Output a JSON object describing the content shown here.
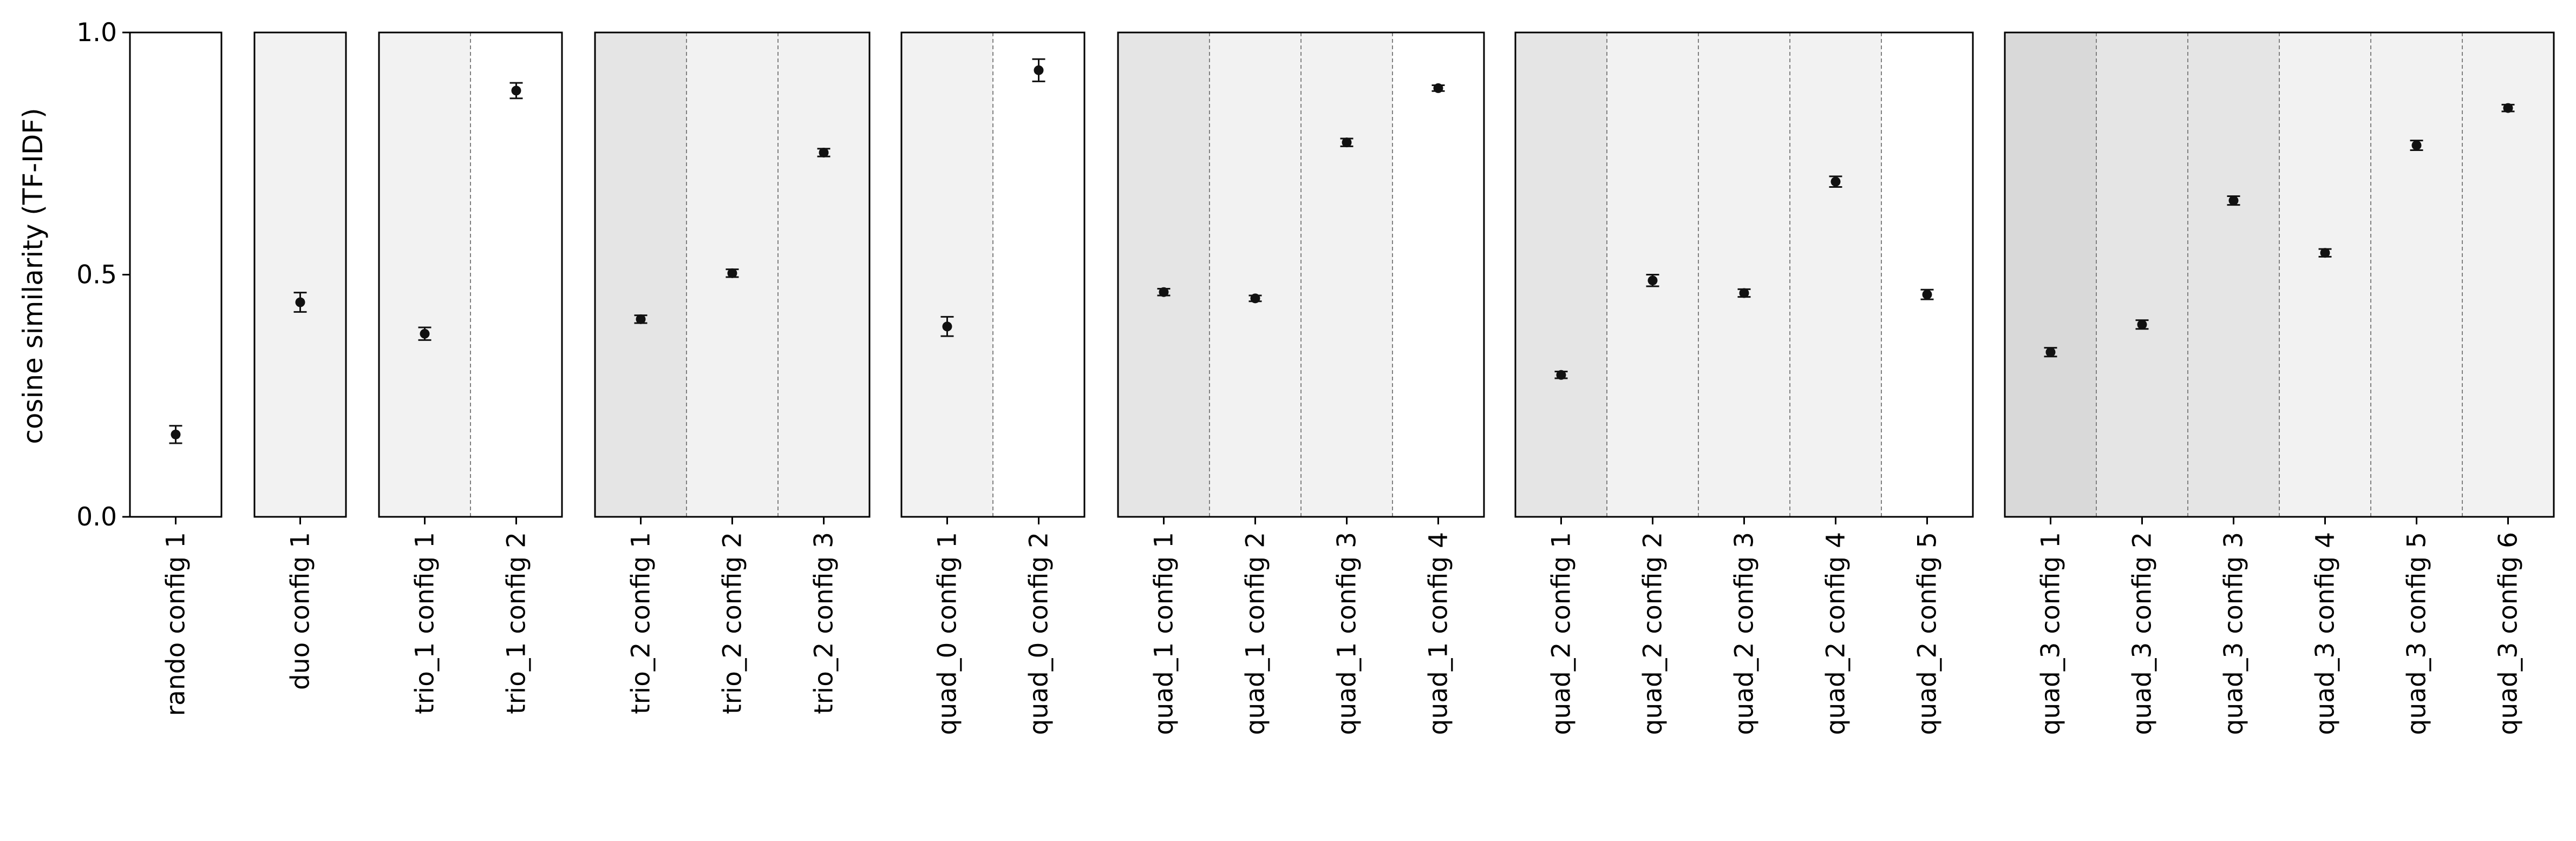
{
  "chart_data": {
    "type": "scatter",
    "ylabel": "cosine similarity (TF-IDF)",
    "ylim": [
      0,
      1
    ],
    "yticks": [
      "0.0",
      "0.5",
      "1.0"
    ],
    "yticks_values": [
      0,
      0.5,
      1
    ],
    "grid": false,
    "legend": "none",
    "colors": {
      "point": "#111111",
      "frame": "#000000",
      "divider": "#808080",
      "bg_white": "#ffffff",
      "bg_light": "#f2f2f2",
      "bg_mid": "#e5e5e5",
      "bg_dark": "#d9d9d9"
    },
    "panels": [
      {
        "group": "rando",
        "categories": [
          "rando config 1"
        ],
        "values": [
          0.17
        ],
        "errors": [
          0.018
        ],
        "bands": [
          "white"
        ]
      },
      {
        "group": "duo",
        "categories": [
          "duo config 1"
        ],
        "values": [
          0.443
        ],
        "errors": [
          0.02
        ],
        "bands": [
          "light"
        ]
      },
      {
        "group": "trio_1",
        "categories": [
          "trio_1 config 1",
          "trio_1 config 2"
        ],
        "values": [
          0.378,
          0.88
        ],
        "errors": [
          0.013,
          0.016
        ],
        "bands": [
          "light",
          "white"
        ]
      },
      {
        "group": "trio_2",
        "categories": [
          "trio_2 config 1",
          "trio_2 config 2",
          "trio_2 config 3"
        ],
        "values": [
          0.408,
          0.503,
          0.752
        ],
        "errors": [
          0.008,
          0.008,
          0.008
        ],
        "bands": [
          "mid",
          "light",
          "light"
        ]
      },
      {
        "group": "quad_0",
        "categories": [
          "quad_0 config 1",
          "quad_0 config 2"
        ],
        "values": [
          0.393,
          0.922
        ],
        "errors": [
          0.02,
          0.023
        ],
        "bands": [
          "light",
          "white"
        ]
      },
      {
        "group": "quad_1",
        "categories": [
          "quad_1 config 1",
          "quad_1 config 2",
          "quad_1 config 3",
          "quad_1 config 4"
        ],
        "values": [
          0.464,
          0.451,
          0.773,
          0.885
        ],
        "errors": [
          0.007,
          0.006,
          0.008,
          0.006
        ],
        "bands": [
          "mid",
          "light",
          "light",
          "white"
        ]
      },
      {
        "group": "quad_2",
        "categories": [
          "quad_2 config 1",
          "quad_2 config 2",
          "quad_2 config 3",
          "quad_2 config 4",
          "quad_2 config 5"
        ],
        "values": [
          0.293,
          0.488,
          0.462,
          0.692,
          0.459
        ],
        "errors": [
          0.007,
          0.012,
          0.008,
          0.011,
          0.01
        ],
        "bands": [
          "mid",
          "light",
          "light",
          "light",
          "white"
        ]
      },
      {
        "group": "quad_3",
        "categories": [
          "quad_3 config 1",
          "quad_3 config 2",
          "quad_3 config 3",
          "quad_3 config 4",
          "quad_3 config 5",
          "quad_3 config 6"
        ],
        "values": [
          0.34,
          0.397,
          0.653,
          0.545,
          0.767,
          0.844
        ],
        "errors": [
          0.009,
          0.009,
          0.009,
          0.008,
          0.01,
          0.007
        ],
        "bands": [
          "dark",
          "mid",
          "mid",
          "light",
          "light",
          "light"
        ]
      }
    ]
  }
}
